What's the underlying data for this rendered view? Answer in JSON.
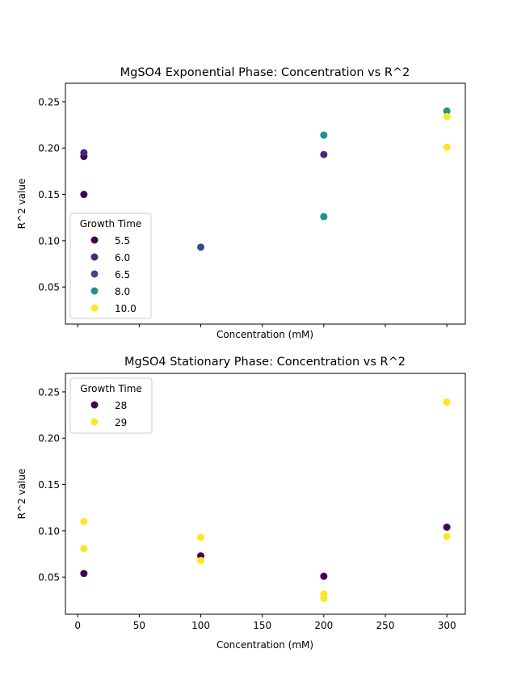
{
  "chart_data": [
    {
      "type": "scatter",
      "title": "MgSO4 Exponential Phase: Concentration vs R^2",
      "xlabel": "Concentration (mM)",
      "ylabel": "R^2 value",
      "xlim": [
        -10,
        315
      ],
      "ylim": [
        0.01,
        0.27
      ],
      "x_ticks": [
        0,
        50,
        100,
        150,
        200,
        250,
        300
      ],
      "x_tick_labels_visible": false,
      "y_ticks": [
        0.05,
        0.1,
        0.15,
        0.2,
        0.25
      ],
      "y_tick_labels": [
        "0.05",
        "0.10",
        "0.15",
        "0.20",
        "0.25"
      ],
      "grid": false,
      "legend": {
        "title": "Growth Time",
        "location": "center-left"
      },
      "series": [
        {
          "name": "5.5",
          "color": "#440154",
          "points": [
            [
              5,
              0.191
            ],
            [
              5,
              0.15
            ]
          ]
        },
        {
          "name": "6.0",
          "color": "#482878",
          "points": [
            [
              5,
              0.195
            ],
            [
              200,
              0.193
            ]
          ]
        },
        {
          "name": "6.5",
          "color": "#3e4989",
          "points": [
            [
              100,
              0.093
            ]
          ]
        },
        {
          "name": "8.0",
          "color": "#21918c",
          "points": [
            [
              200,
              0.214
            ],
            [
              200,
              0.126
            ],
            [
              300,
              0.24
            ]
          ]
        },
        {
          "name": "10.0",
          "color": "#fde725",
          "points": [
            [
              300,
              0.234
            ],
            [
              300,
              0.201
            ]
          ]
        }
      ]
    },
    {
      "type": "scatter",
      "title": "MgSO4 Stationary Phase: Concentration vs R^2",
      "xlabel": "Concentration (mM)",
      "ylabel": "R^2 value",
      "xlim": [
        -10,
        315
      ],
      "ylim": [
        0.01,
        0.27
      ],
      "x_ticks": [
        0,
        50,
        100,
        150,
        200,
        250,
        300
      ],
      "x_tick_labels": [
        "0",
        "50",
        "100",
        "150",
        "200",
        "250",
        "300"
      ],
      "y_ticks": [
        0.05,
        0.1,
        0.15,
        0.2,
        0.25
      ],
      "y_tick_labels": [
        "0.05",
        "0.10",
        "0.15",
        "0.20",
        "0.25"
      ],
      "grid": false,
      "legend": {
        "title": "Growth Time",
        "location": "top-left"
      },
      "series": [
        {
          "name": "28",
          "color": "#440154",
          "points": [
            [
              5,
              0.054
            ],
            [
              100,
              0.073
            ],
            [
              200,
              0.051
            ],
            [
              300,
              0.104
            ]
          ]
        },
        {
          "name": "29",
          "color": "#fde725",
          "points": [
            [
              5,
              0.11
            ],
            [
              5,
              0.081
            ],
            [
              100,
              0.093
            ],
            [
              100,
              0.068
            ],
            [
              200,
              0.032
            ],
            [
              200,
              0.027
            ],
            [
              300,
              0.239
            ],
            [
              300,
              0.094
            ]
          ]
        }
      ]
    }
  ]
}
